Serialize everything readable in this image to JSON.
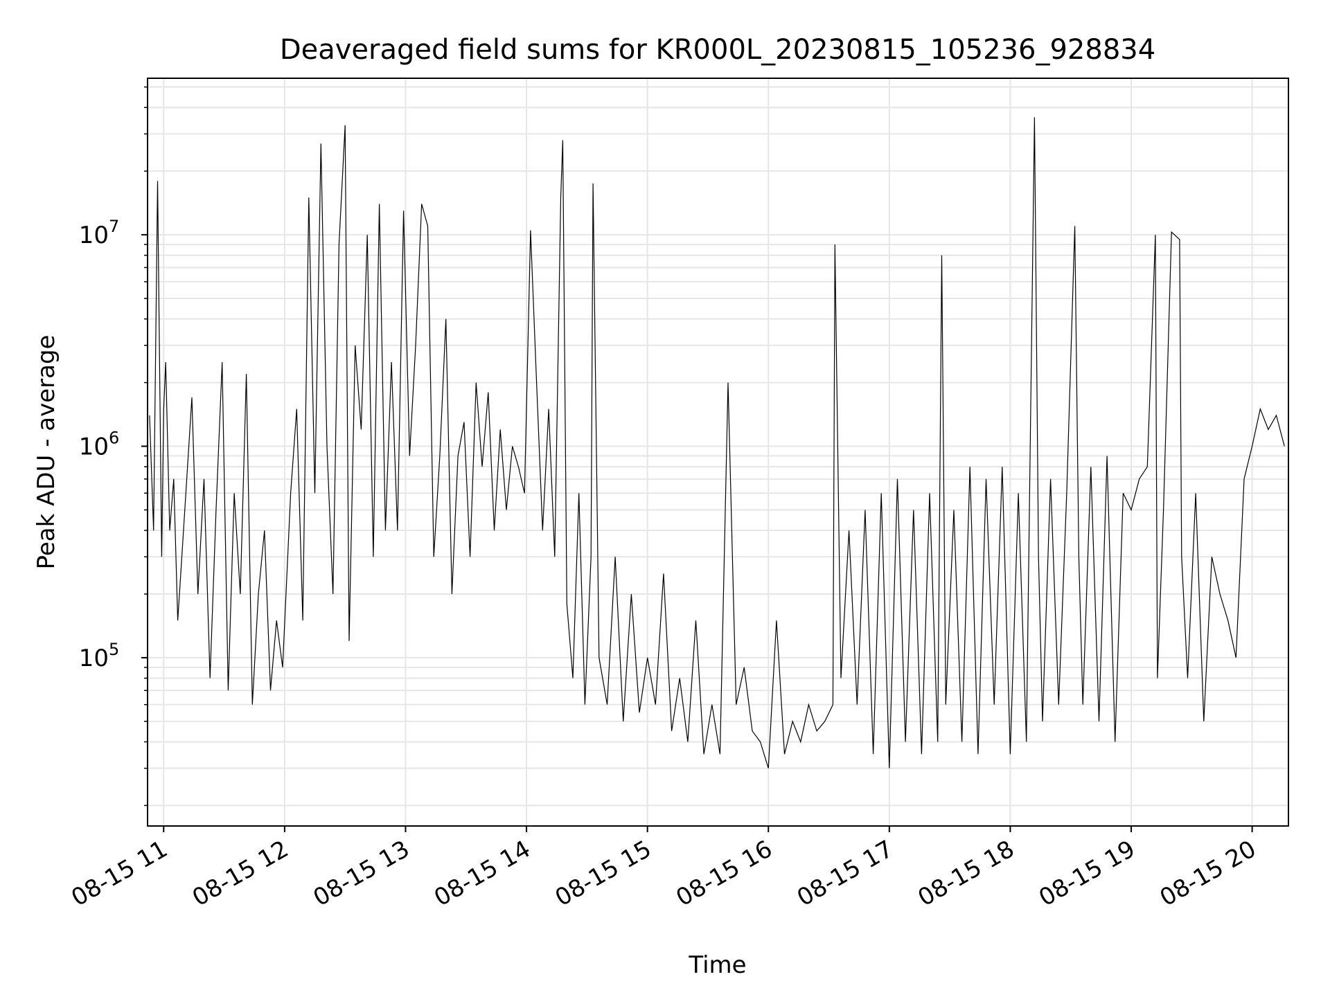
{
  "chart_data": {
    "type": "line",
    "title": "Deaveraged field sums for KR000L_20230815_105236_928834",
    "xlabel": "Time",
    "ylabel": "Peak ADU - average",
    "x_scale": "time",
    "y_scale": "log",
    "grid": true,
    "legend": "none",
    "line_color": "#000000",
    "grid_color": "#e6e6e6",
    "xlim": [
      "2023-08-15 10:52",
      "2023-08-15 20:18"
    ],
    "ylim": [
      16000,
      55000000
    ],
    "x_ticks": [
      {
        "t": "2023-08-15 11:00",
        "label": "08-15 11"
      },
      {
        "t": "2023-08-15 12:00",
        "label": "08-15 12"
      },
      {
        "t": "2023-08-15 13:00",
        "label": "08-15 13"
      },
      {
        "t": "2023-08-15 14:00",
        "label": "08-15 14"
      },
      {
        "t": "2023-08-15 15:00",
        "label": "08-15 15"
      },
      {
        "t": "2023-08-15 16:00",
        "label": "08-15 16"
      },
      {
        "t": "2023-08-15 17:00",
        "label": "08-15 17"
      },
      {
        "t": "2023-08-15 18:00",
        "label": "08-15 18"
      },
      {
        "t": "2023-08-15 19:00",
        "label": "08-15 19"
      },
      {
        "t": "2023-08-15 20:00",
        "label": "08-15 20"
      }
    ],
    "y_ticks": [
      {
        "value": 100000,
        "base": "10",
        "exp": "5"
      },
      {
        "value": 1000000,
        "base": "10",
        "exp": "6"
      },
      {
        "value": 10000000,
        "base": "10",
        "exp": "7"
      }
    ],
    "series": [
      {
        "x": [
          "2023-08-15 10:53",
          "2023-08-15 10:55",
          "2023-08-15 10:57",
          "2023-08-15 10:59",
          "2023-08-15 11:00",
          "2023-08-15 11:01",
          "2023-08-15 11:03",
          "2023-08-15 11:05",
          "2023-08-15 11:07",
          "2023-08-15 11:09",
          "2023-08-15 11:11",
          "2023-08-15 11:14",
          "2023-08-15 11:17",
          "2023-08-15 11:20",
          "2023-08-15 11:23",
          "2023-08-15 11:26",
          "2023-08-15 11:29",
          "2023-08-15 11:32",
          "2023-08-15 11:35",
          "2023-08-15 11:38",
          "2023-08-15 11:41",
          "2023-08-15 11:44",
          "2023-08-15 11:47",
          "2023-08-15 11:50",
          "2023-08-15 11:53",
          "2023-08-15 11:56",
          "2023-08-15 11:59",
          "2023-08-15 12:03",
          "2023-08-15 12:06",
          "2023-08-15 12:09",
          "2023-08-15 12:12",
          "2023-08-15 12:15",
          "2023-08-15 12:18",
          "2023-08-15 12:21",
          "2023-08-15 12:24",
          "2023-08-15 12:27",
          "2023-08-15 12:30",
          "2023-08-15 12:32",
          "2023-08-15 12:35",
          "2023-08-15 12:38",
          "2023-08-15 12:41",
          "2023-08-15 12:44",
          "2023-08-15 12:47",
          "2023-08-15 12:50",
          "2023-08-15 12:53",
          "2023-08-15 12:56",
          "2023-08-15 12:59",
          "2023-08-15 13:02",
          "2023-08-15 13:05",
          "2023-08-15 13:08",
          "2023-08-15 13:11",
          "2023-08-15 13:14",
          "2023-08-15 13:17",
          "2023-08-15 13:20",
          "2023-08-15 13:23",
          "2023-08-15 13:26",
          "2023-08-15 13:29",
          "2023-08-15 13:32",
          "2023-08-15 13:35",
          "2023-08-15 13:38",
          "2023-08-15 13:41",
          "2023-08-15 13:44",
          "2023-08-15 13:47",
          "2023-08-15 13:50",
          "2023-08-15 13:53",
          "2023-08-15 13:56",
          "2023-08-15 13:59",
          "2023-08-15 14:02",
          "2023-08-15 14:05",
          "2023-08-15 14:08",
          "2023-08-15 14:11",
          "2023-08-15 14:14",
          "2023-08-15 14:17",
          "2023-08-15 14:18",
          "2023-08-15 14:20",
          "2023-08-15 14:23",
          "2023-08-15 14:26",
          "2023-08-15 14:29",
          "2023-08-15 14:32",
          "2023-08-15 14:33",
          "2023-08-15 14:36",
          "2023-08-15 14:40",
          "2023-08-15 14:44",
          "2023-08-15 14:48",
          "2023-08-15 14:52",
          "2023-08-15 14:56",
          "2023-08-15 15:00",
          "2023-08-15 15:04",
          "2023-08-15 15:08",
          "2023-08-15 15:12",
          "2023-08-15 15:16",
          "2023-08-15 15:20",
          "2023-08-15 15:24",
          "2023-08-15 15:28",
          "2023-08-15 15:32",
          "2023-08-15 15:36",
          "2023-08-15 15:40",
          "2023-08-15 15:44",
          "2023-08-15 15:48",
          "2023-08-15 15:52",
          "2023-08-15 15:56",
          "2023-08-15 16:00",
          "2023-08-15 16:04",
          "2023-08-15 16:08",
          "2023-08-15 16:12",
          "2023-08-15 16:16",
          "2023-08-15 16:20",
          "2023-08-15 16:24",
          "2023-08-15 16:28",
          "2023-08-15 16:32",
          "2023-08-15 16:33",
          "2023-08-15 16:36",
          "2023-08-15 16:40",
          "2023-08-15 16:44",
          "2023-08-15 16:48",
          "2023-08-15 16:52",
          "2023-08-15 16:56",
          "2023-08-15 17:00",
          "2023-08-15 17:04",
          "2023-08-15 17:08",
          "2023-08-15 17:12",
          "2023-08-15 17:16",
          "2023-08-15 17:20",
          "2023-08-15 17:24",
          "2023-08-15 17:26",
          "2023-08-15 17:28",
          "2023-08-15 17:32",
          "2023-08-15 17:36",
          "2023-08-15 17:40",
          "2023-08-15 17:44",
          "2023-08-15 17:48",
          "2023-08-15 17:52",
          "2023-08-15 17:56",
          "2023-08-15 18:00",
          "2023-08-15 18:04",
          "2023-08-15 18:08",
          "2023-08-15 18:12",
          "2023-08-15 18:14",
          "2023-08-15 18:16",
          "2023-08-15 18:20",
          "2023-08-15 18:24",
          "2023-08-15 18:28",
          "2023-08-15 18:32",
          "2023-08-15 18:34",
          "2023-08-15 18:36",
          "2023-08-15 18:40",
          "2023-08-15 18:44",
          "2023-08-15 18:48",
          "2023-08-15 18:52",
          "2023-08-15 18:56",
          "2023-08-15 19:00",
          "2023-08-15 19:04",
          "2023-08-15 19:08",
          "2023-08-15 19:12",
          "2023-08-15 19:13",
          "2023-08-15 19:16",
          "2023-08-15 19:20",
          "2023-08-15 19:24",
          "2023-08-15 19:25",
          "2023-08-15 19:28",
          "2023-08-15 19:32",
          "2023-08-15 19:36",
          "2023-08-15 19:40",
          "2023-08-15 19:44",
          "2023-08-15 19:48",
          "2023-08-15 19:52",
          "2023-08-15 19:56",
          "2023-08-15 20:00",
          "2023-08-15 20:04",
          "2023-08-15 20:08",
          "2023-08-15 20:12",
          "2023-08-15 20:16"
        ],
        "y": [
          1400000,
          400000,
          18000000,
          300000,
          1500000,
          2500000,
          400000,
          700000,
          150000,
          300000,
          600000,
          1700000,
          200000,
          700000,
          80000,
          500000,
          2500000,
          70000,
          600000,
          200000,
          2200000,
          60000,
          200000,
          400000,
          70000,
          150000,
          90000,
          600000,
          1500000,
          150000,
          15000000,
          600000,
          27000000,
          1000000,
          200000,
          9000000,
          33000000,
          120000,
          3000000,
          1200000,
          10000000,
          300000,
          14000000,
          400000,
          2500000,
          400000,
          13000000,
          900000,
          3000000,
          14000000,
          11000000,
          300000,
          900000,
          4000000,
          200000,
          900000,
          1300000,
          300000,
          2000000,
          800000,
          1800000,
          400000,
          1200000,
          500000,
          1000000,
          800000,
          600000,
          10500000,
          2000000,
          400000,
          1500000,
          300000,
          15000000,
          28000000,
          180000,
          80000,
          600000,
          60000,
          300000,
          17500000,
          100000,
          60000,
          300000,
          50000,
          200000,
          55000,
          100000,
          60000,
          250000,
          45000,
          80000,
          40000,
          150000,
          35000,
          60000,
          35000,
          2000000,
          60000,
          90000,
          45000,
          40000,
          30000,
          150000,
          35000,
          50000,
          40000,
          60000,
          45000,
          50000,
          60000,
          9000000,
          80000,
          400000,
          60000,
          500000,
          35000,
          600000,
          30000,
          700000,
          40000,
          500000,
          35000,
          600000,
          40000,
          8000000,
          60000,
          500000,
          40000,
          800000,
          35000,
          700000,
          60000,
          800000,
          35000,
          600000,
          40000,
          36000000,
          300000,
          50000,
          700000,
          60000,
          600000,
          11000000,
          300000,
          60000,
          800000,
          50000,
          900000,
          40000,
          600000,
          500000,
          700000,
          800000,
          10000000,
          80000,
          500000,
          10300000,
          9500000,
          300000,
          80000,
          600000,
          50000,
          300000,
          200000,
          150000,
          100000,
          700000,
          1000000,
          1500000,
          1200000,
          1400000,
          1000000
        ]
      }
    ]
  }
}
